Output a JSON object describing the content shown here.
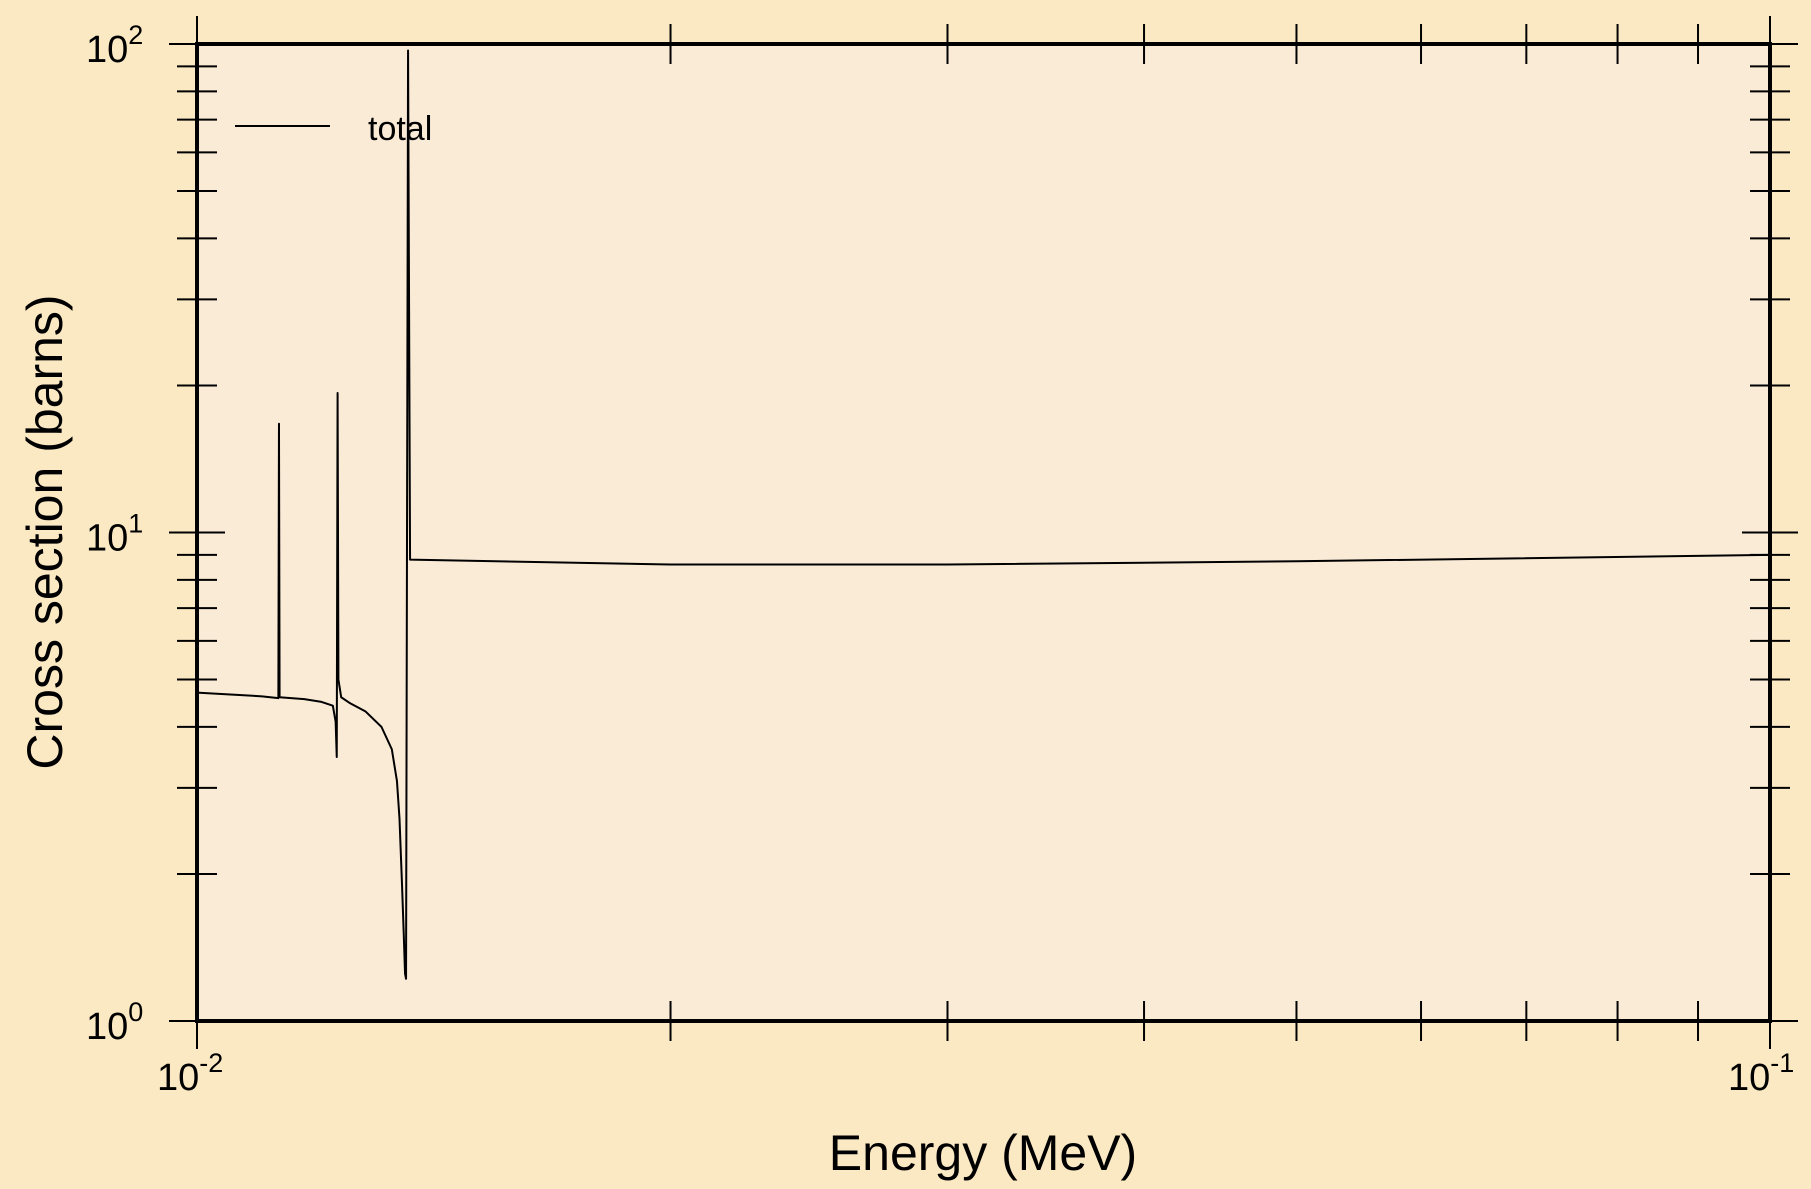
{
  "chart_data": {
    "type": "line",
    "xlabel": "Energy (MeV)",
    "ylabel": "Cross section (barns)",
    "x_scale": "log",
    "y_scale": "log",
    "xlim": [
      0.01,
      0.1
    ],
    "ylim": [
      1,
      100
    ],
    "x_ticks": [
      {
        "base": "10",
        "exp": "-2"
      },
      {
        "base": "10",
        "exp": "-1"
      }
    ],
    "y_ticks": [
      {
        "base": "10",
        "exp": "0"
      },
      {
        "base": "10",
        "exp": "1"
      },
      {
        "base": "10",
        "exp": "2"
      }
    ],
    "legend": {
      "placement": "top-left",
      "entries": [
        "total"
      ]
    },
    "grid": false,
    "background_color": "#fbe9c4",
    "plot_area_color": "#faebd7",
    "line_color": "#000000",
    "series": [
      {
        "name": "total",
        "points": [
          [
            0.01,
            4.7
          ],
          [
            0.0105,
            4.66
          ],
          [
            0.011,
            4.62
          ],
          [
            0.011265,
            4.58
          ],
          [
            0.011275,
            16.7
          ],
          [
            0.011285,
            4.6
          ],
          [
            0.0117,
            4.56
          ],
          [
            0.012,
            4.5
          ],
          [
            0.0122,
            4.42
          ],
          [
            0.01225,
            4.1
          ],
          [
            0.01227,
            3.47
          ],
          [
            0.012285,
            19.3
          ],
          [
            0.0123,
            5.0
          ],
          [
            0.01235,
            4.6
          ],
          [
            0.0125,
            4.48
          ],
          [
            0.0128,
            4.3
          ],
          [
            0.0131,
            4.0
          ],
          [
            0.0133,
            3.6
          ],
          [
            0.0134,
            3.1
          ],
          [
            0.01345,
            2.6
          ],
          [
            0.0135,
            1.9
          ],
          [
            0.013535,
            1.5
          ],
          [
            0.01356,
            1.25
          ],
          [
            0.01358,
            1.22
          ],
          [
            0.01362,
            97.0
          ],
          [
            0.01366,
            8.8
          ],
          [
            0.02,
            8.6
          ],
          [
            0.03,
            8.6
          ],
          [
            0.05,
            8.73
          ],
          [
            0.1,
            9.0
          ]
        ]
      }
    ]
  }
}
